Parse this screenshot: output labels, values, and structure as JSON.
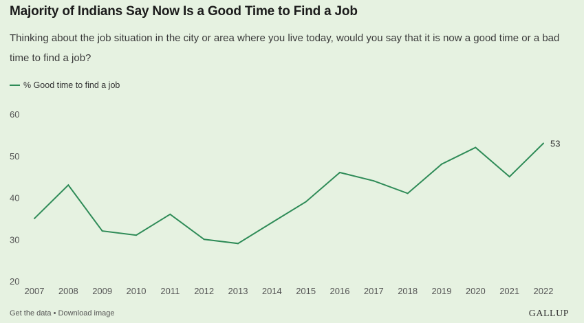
{
  "header": {
    "title": "Majority of Indians Say Now Is a Good Time to Find a Job",
    "subtitle": "Thinking about the job situation in the city or area where you live today, would you say that it is now a good time or a bad time to find a job?"
  },
  "footer": {
    "get_data": "Get the data",
    "separator": "•",
    "download": "Download image",
    "brand": "GALLUP"
  },
  "colors": {
    "background": "#e6f2e1",
    "line": "#2e8b57",
    "axis_text": "#555555"
  },
  "chart_data": {
    "type": "line",
    "title": "Majority of Indians Say Now Is a Good Time to Find a Job",
    "xlabel": "",
    "ylabel": "",
    "ylim": [
      20,
      60
    ],
    "yticks": [
      20,
      30,
      40,
      50,
      60
    ],
    "grid": false,
    "legend_position": "top-left",
    "x": [
      "2007",
      "2008",
      "2009",
      "2010",
      "2011",
      "2012",
      "2013",
      "2014",
      "2015",
      "2016",
      "2017",
      "2018",
      "2019",
      "2020",
      "2021",
      "2022"
    ],
    "series": [
      {
        "name": "% Good time to find a job",
        "values": [
          35,
          43,
          32,
          31,
          36,
          30,
          29,
          34,
          39,
          46,
          44,
          41,
          48,
          52,
          45,
          53
        ]
      }
    ],
    "annotations": [
      {
        "x": "2022",
        "label": "53"
      }
    ]
  }
}
